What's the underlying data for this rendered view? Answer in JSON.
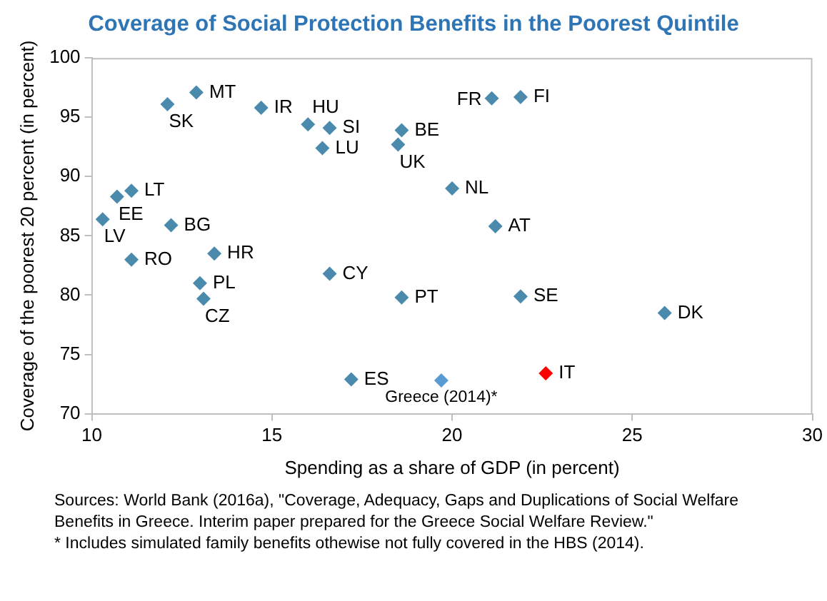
{
  "chart_data": {
    "type": "scatter",
    "title": "Coverage of Social Protection Benefits in the Poorest Quintile",
    "xlabel": "Spending as a share of GDP (in percent)",
    "ylabel": "Coverage of the poorest 20 percent (in percent)",
    "xlim": [
      10,
      30
    ],
    "xticks": [
      10,
      15,
      20,
      25,
      30
    ],
    "ylim": [
      70,
      100
    ],
    "yticks": [
      70,
      75,
      80,
      85,
      90,
      95,
      100
    ],
    "marker": "diamond",
    "series": [
      {
        "color": "#4a8bad",
        "x": [
          12.9,
          12.1,
          14.7,
          16.0,
          16.6,
          16.4,
          18.6,
          18.5,
          11.1,
          10.7,
          10.3,
          12.2,
          11.1,
          13.4,
          13.0,
          13.1,
          16.6,
          18.6,
          17.2,
          21.1,
          21.9,
          20.0,
          21.2,
          21.9,
          25.9
        ],
        "values": [
          97.1,
          96.1,
          95.8,
          94.4,
          94.1,
          92.4,
          93.9,
          92.7,
          88.8,
          88.3,
          86.4,
          85.9,
          83.0,
          83.5,
          81.0,
          79.7,
          81.8,
          79.8,
          72.9,
          96.6,
          96.7,
          89.0,
          85.8,
          79.9,
          78.5
        ]
      },
      {
        "color": "#5b9bd5",
        "x": [
          19.7
        ],
        "values": [
          72.8
        ]
      },
      {
        "color": "#ff0000",
        "x": [
          22.6
        ],
        "values": [
          73.4
        ]
      }
    ],
    "annotations": [
      {
        "text": "MT",
        "x": 12.9,
        "y": 97.1
      },
      {
        "text": "SK",
        "x": 12.1,
        "y": 96.1
      },
      {
        "text": "IR",
        "x": 14.7,
        "y": 95.8
      },
      {
        "text": "HU",
        "x": 16.0,
        "y": 94.4
      },
      {
        "text": "SI",
        "x": 16.6,
        "y": 94.1
      },
      {
        "text": "LU",
        "x": 16.4,
        "y": 92.4
      },
      {
        "text": "BE",
        "x": 18.6,
        "y": 93.9
      },
      {
        "text": "UK",
        "x": 18.5,
        "y": 92.7
      },
      {
        "text": "LT",
        "x": 11.1,
        "y": 88.8
      },
      {
        "text": "EE",
        "x": 10.7,
        "y": 88.3
      },
      {
        "text": "LV",
        "x": 10.3,
        "y": 86.4
      },
      {
        "text": "BG",
        "x": 12.2,
        "y": 85.9
      },
      {
        "text": "RO",
        "x": 11.1,
        "y": 83.0
      },
      {
        "text": "HR",
        "x": 13.4,
        "y": 83.5
      },
      {
        "text": "PL",
        "x": 13.0,
        "y": 81.0
      },
      {
        "text": "CZ",
        "x": 13.1,
        "y": 79.7
      },
      {
        "text": "CY",
        "x": 16.6,
        "y": 81.8
      },
      {
        "text": "PT",
        "x": 18.6,
        "y": 79.8
      },
      {
        "text": "ES",
        "x": 17.2,
        "y": 72.9
      },
      {
        "text": "FR",
        "x": 21.1,
        "y": 96.6
      },
      {
        "text": "FI",
        "x": 21.9,
        "y": 96.7
      },
      {
        "text": "NL",
        "x": 20.0,
        "y": 89.0
      },
      {
        "text": "AT",
        "x": 21.2,
        "y": 85.8
      },
      {
        "text": "SE",
        "x": 21.9,
        "y": 79.9
      },
      {
        "text": "DK",
        "x": 25.9,
        "y": 78.5
      },
      {
        "text": "Greece (2014)*",
        "x": 19.7,
        "y": 72.8
      },
      {
        "text": "IT",
        "x": 22.6,
        "y": 73.4
      },
      "Sources: World Bank (2016a), \"Coverage, Adequacy, Gaps and Duplications of Social Welfare Benefits in Greece. Interim paper prepared for the Greece Social Welfare Review.\"",
      "* Includes simulated family benefits othewise not fully covered in the HBS (2014)."
    ]
  }
}
